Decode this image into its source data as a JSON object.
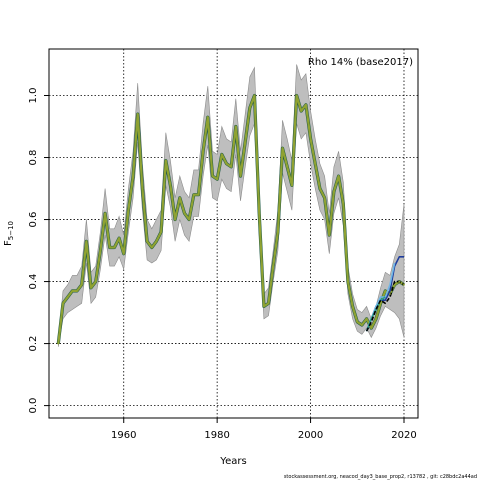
{
  "chart_data": {
    "type": "line",
    "title": "",
    "xlabel": "Years",
    "ylabel_main": "F",
    "ylabel_sub": "5−10",
    "legend_label": "Rho 14% (base2017)",
    "legend_position": "top-right",
    "grid": true,
    "xlim": [
      1944,
      2023
    ],
    "ylim": [
      -0.04,
      1.15
    ],
    "x_ticks": [
      1960,
      1980,
      2000,
      2020
    ],
    "y_ticks": [
      0.0,
      0.2,
      0.4,
      0.6,
      0.8,
      1.0
    ],
    "x_tick_labels": [
      "1960",
      "1980",
      "2000",
      "2020"
    ],
    "y_tick_labels": [
      "0.0",
      "0.2",
      "0.4",
      "0.6",
      "0.8",
      "1.0"
    ],
    "colors": {
      "band": "#bebebe",
      "band_stroke": "#8c8c8c",
      "main_line": "#8fa232",
      "dark_line": "#1e5a46",
      "black_dashed": "#000000",
      "retro_blue": "#1f3c9c",
      "retro_lightblue": "#6fb6e6",
      "retro_teal": "#2a9c8c"
    },
    "series": [
      {
        "name": "",
        "x": [
          1946,
          1947,
          1948,
          1949,
          1950,
          1951,
          1952,
          1953,
          1954,
          1955,
          1956,
          1957,
          1958,
          1959,
          1960,
          1961,
          1962,
          1963,
          1964,
          1965,
          1966,
          1967,
          1968,
          1969,
          1970,
          1971,
          1972,
          1973,
          1974,
          1975,
          1976,
          1977,
          1978,
          1979,
          1980,
          1981,
          1982,
          1983,
          1984,
          1985,
          1986,
          1987,
          1988,
          1989,
          1990,
          1991,
          1992,
          1993,
          1994,
          1995,
          1996,
          1997,
          1998,
          1999,
          2000,
          2001,
          2002,
          2003,
          2004,
          2005,
          2006,
          2007,
          2008,
          2009,
          2010,
          2011,
          2012,
          2013,
          2014,
          2015,
          2016,
          2017,
          2018,
          2019,
          2020
        ],
        "y": [
          0.2,
          0.33,
          0.35,
          0.37,
          0.37,
          0.39,
          0.53,
          0.38,
          0.4,
          0.5,
          0.62,
          0.51,
          0.51,
          0.54,
          0.49,
          0.63,
          0.74,
          0.94,
          0.7,
          0.53,
          0.51,
          0.53,
          0.56,
          0.79,
          0.71,
          0.6,
          0.67,
          0.62,
          0.6,
          0.68,
          0.68,
          0.82,
          0.93,
          0.74,
          0.73,
          0.81,
          0.78,
          0.77,
          0.9,
          0.74,
          0.85,
          0.96,
          1.0,
          0.62,
          0.32,
          0.33,
          0.45,
          0.56,
          0.83,
          0.77,
          0.71,
          1.0,
          0.95,
          0.97,
          0.86,
          0.78,
          0.7,
          0.67,
          0.55,
          0.69,
          0.74,
          0.65,
          0.4,
          0.32,
          0.27,
          0.26,
          0.28,
          0.25,
          0.28,
          0.33,
          0.37,
          0.36,
          0.39,
          0.4,
          0.39
        ],
        "lower": [
          0.19,
          0.28,
          0.3,
          0.31,
          0.32,
          0.33,
          0.46,
          0.33,
          0.35,
          0.44,
          0.55,
          0.45,
          0.45,
          0.48,
          0.44,
          0.56,
          0.67,
          0.85,
          0.63,
          0.47,
          0.46,
          0.47,
          0.5,
          0.71,
          0.64,
          0.53,
          0.6,
          0.55,
          0.53,
          0.61,
          0.61,
          0.74,
          0.84,
          0.67,
          0.66,
          0.73,
          0.7,
          0.69,
          0.81,
          0.66,
          0.77,
          0.87,
          0.91,
          0.55,
          0.28,
          0.29,
          0.4,
          0.5,
          0.75,
          0.69,
          0.63,
          0.91,
          0.86,
          0.88,
          0.78,
          0.7,
          0.63,
          0.6,
          0.49,
          0.62,
          0.67,
          0.58,
          0.36,
          0.28,
          0.24,
          0.23,
          0.25,
          0.22,
          0.25,
          0.29,
          0.32,
          0.31,
          0.3,
          0.28,
          0.22
        ],
        "upper": [
          0.21,
          0.37,
          0.39,
          0.42,
          0.42,
          0.45,
          0.6,
          0.43,
          0.45,
          0.56,
          0.7,
          0.57,
          0.57,
          0.61,
          0.55,
          0.7,
          0.82,
          1.04,
          0.78,
          0.6,
          0.57,
          0.6,
          0.63,
          0.88,
          0.79,
          0.67,
          0.74,
          0.69,
          0.67,
          0.76,
          0.76,
          0.91,
          1.03,
          0.82,
          0.81,
          0.9,
          0.86,
          0.85,
          0.99,
          0.82,
          0.94,
          1.06,
          1.09,
          0.69,
          0.36,
          0.38,
          0.5,
          0.63,
          0.92,
          0.86,
          0.79,
          1.1,
          1.05,
          1.07,
          0.95,
          0.86,
          0.78,
          0.74,
          0.62,
          0.77,
          0.82,
          0.72,
          0.45,
          0.36,
          0.31,
          0.3,
          0.32,
          0.28,
          0.32,
          0.38,
          0.43,
          0.42,
          0.48,
          0.52,
          0.65
        ]
      },
      {
        "name": "",
        "x": [
          2012,
          2013,
          2014,
          2015,
          2016,
          2017,
          2018,
          2019,
          2020
        ],
        "y": [
          0.24,
          0.27,
          0.31,
          0.34,
          0.33,
          0.35,
          0.4,
          0.4,
          0.39
        ]
      },
      {
        "name": "",
        "x": [
          2012,
          2013,
          2014,
          2015,
          2016,
          2017,
          2018,
          2019,
          2020
        ],
        "y": [
          0.24,
          0.28,
          0.32,
          0.34,
          0.34,
          0.37,
          0.45,
          0.48,
          0.48
        ]
      },
      {
        "name": "",
        "x": [
          2012,
          2013,
          2014,
          2015,
          2016,
          2017,
          2018
        ],
        "y": [
          0.24,
          0.28,
          0.32,
          0.35,
          0.35,
          0.39,
          0.46
        ]
      },
      {
        "name": "",
        "x": [
          2012,
          2013,
          2014,
          2015,
          2016
        ],
        "y": [
          0.24,
          0.28,
          0.31,
          0.34,
          0.35
        ]
      }
    ],
    "footer": "stockassessment.org,  neacod_day3_base_prop2, r13782 ,  git: c28bdc2a44ad"
  }
}
